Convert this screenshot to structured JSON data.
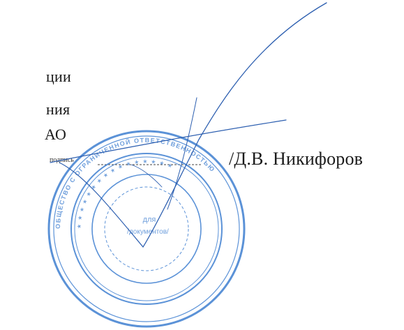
{
  "document": {
    "lines": [
      "ции",
      "ния",
      "АО"
    ],
    "signer_name": "/Д.В. Никифоров",
    "signature_caption": "подпись"
  },
  "stamp": {
    "center_text_1": "для",
    "center_text_2": "/документов/",
    "outer_ring_text": "ОБЩЕСТВО С ОГРАНИЧЕННОЙ ОТВЕТСТВЕННОСТЬЮ"
  },
  "colors": {
    "stamp_ink": "#3f7fd1",
    "signature_ink": "#2d5fb0",
    "text": "#1a1a1a"
  }
}
